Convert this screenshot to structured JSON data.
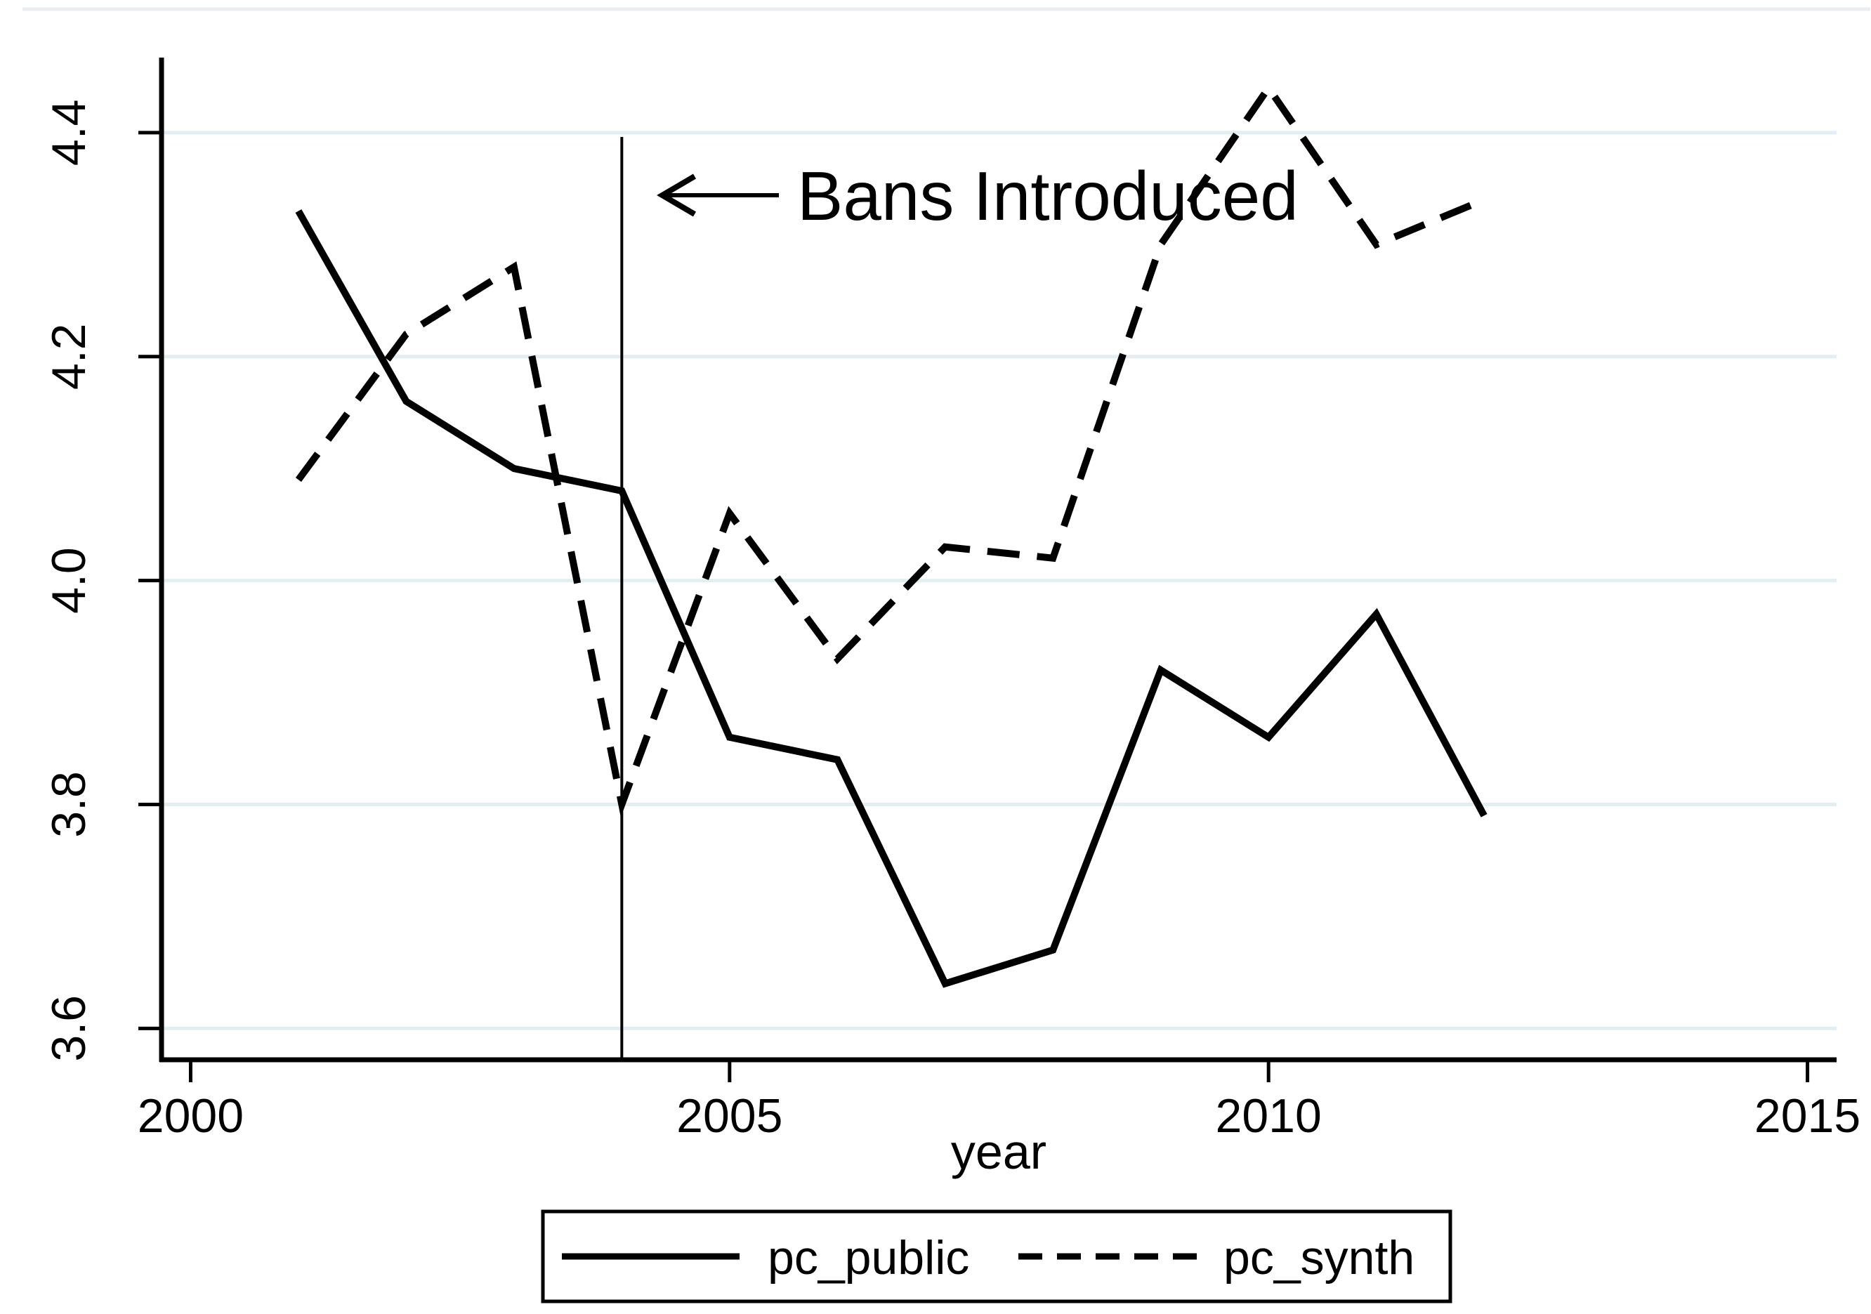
{
  "chart_data": {
    "type": "line",
    "title": "",
    "xlabel": "year",
    "ylabel": "",
    "x": [
      2001,
      2002,
      2003,
      2004,
      2005,
      2006,
      2007,
      2008,
      2009,
      2010,
      2011,
      2012
    ],
    "series": [
      {
        "name": "pc_public",
        "line_style": "solid",
        "values": [
          4.33,
          4.16,
          4.1,
          4.08,
          3.86,
          3.84,
          3.64,
          3.67,
          3.92,
          3.86,
          3.97,
          3.79
        ]
      },
      {
        "name": "pc_synth",
        "line_style": "dashed",
        "values": [
          4.09,
          4.22,
          4.28,
          3.8,
          4.06,
          3.93,
          4.03,
          4.02,
          4.3,
          4.44,
          4.3,
          4.34
        ]
      }
    ],
    "x_ticks": [
      2000,
      2005,
      2010,
      2015
    ],
    "x_tick_labels": [
      "2000",
      "2005",
      "2010",
      "2015"
    ],
    "y_ticks": [
      3.6,
      3.8,
      4.0,
      4.2,
      4.4
    ],
    "y_tick_labels": [
      "3.6",
      "3.8",
      "4.0",
      "4.2",
      "4.4"
    ],
    "xlim": [
      1999.73,
      2015.27
    ],
    "ylim": [
      3.572,
      4.467
    ],
    "grid": "horizontal",
    "legend_position": "bottom-center",
    "vline": {
      "x": 2004
    },
    "annotation": {
      "text": "Bans Introduced",
      "arrow": "points-left-to-vline"
    }
  },
  "legend": {
    "items": [
      {
        "label": "pc_public",
        "sample": "solid-line"
      },
      {
        "label": "pc_synth",
        "sample": "dashed-line"
      }
    ]
  },
  "colors": {
    "line": "#000000",
    "grid": "#e2eef1",
    "top_border": "#e9eef2",
    "background": "#ffffff"
  }
}
